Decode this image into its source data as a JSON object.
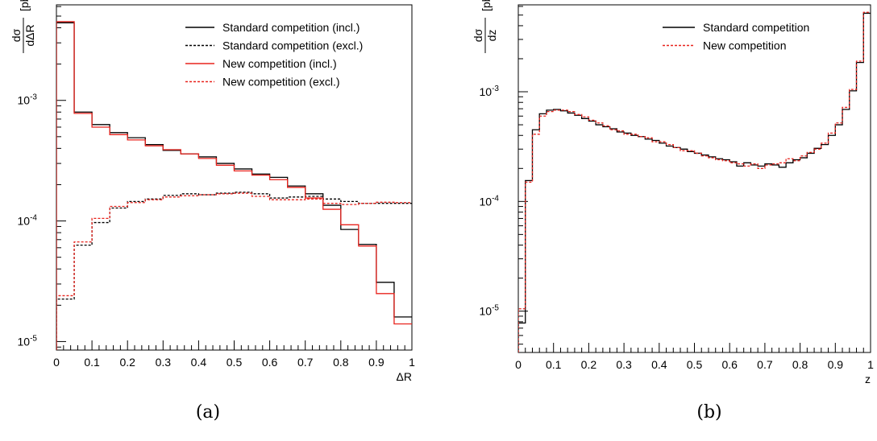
{
  "chart_data": [
    {
      "type": "line",
      "panel": "(a)",
      "xlabel": "ΔR",
      "ylabel": {
        "num": "dσ",
        "den": "dΔR",
        "unit": "[pb]"
      },
      "xlim": [
        0,
        1
      ],
      "ylim": [
        8.5e-06,
        0.0062
      ],
      "yscale": "log",
      "xticks": [
        "0",
        "0.1",
        "0.2",
        "0.3",
        "0.4",
        "0.5",
        "0.6",
        "0.7",
        "0.8",
        "0.9",
        "1"
      ],
      "ytick_labels": [
        {
          "value": 1e-05,
          "base": "10",
          "exp": "-5"
        },
        {
          "value": 0.0001,
          "base": "10",
          "exp": "-4"
        },
        {
          "value": 0.001,
          "base": "10",
          "exp": "-3"
        }
      ],
      "bin_edges": [
        0,
        0.05,
        0.1,
        0.15,
        0.2,
        0.25,
        0.3,
        0.35,
        0.4,
        0.45,
        0.5,
        0.55,
        0.6,
        0.65,
        0.7,
        0.75,
        0.8,
        0.85,
        0.9,
        0.95,
        1.0
      ],
      "legend_position": "top-right",
      "series": [
        {
          "name": "Standard competition (incl.)",
          "color": "#000000",
          "dash": "solid",
          "values": [
            0.0044,
            0.0008,
            0.00063,
            0.00054,
            0.00049,
            0.00043,
            0.000385,
            0.00036,
            0.00034,
            0.0003,
            0.00027,
            0.000245,
            0.00023,
            0.000195,
            0.000168,
            0.000135,
            8.5e-05,
            6.4e-05,
            3.1e-05,
            1.6e-05
          ]
        },
        {
          "name": "Standard competition (excl.)",
          "color": "#000000",
          "dash": "dashed",
          "values": [
            2.25e-05,
            6.3e-05,
            9.7e-05,
            0.000128,
            0.000145,
            0.000152,
            0.000163,
            0.000168,
            0.000165,
            0.00017,
            0.000173,
            0.000168,
            0.000155,
            0.000158,
            0.00016,
            0.000152,
            0.000145,
            0.00014,
            0.00014,
            0.00014
          ]
        },
        {
          "name": "New competition (incl.)",
          "color": "#e8231d",
          "dash": "solid",
          "values": [
            0.0045,
            0.00078,
            0.0006,
            0.00052,
            0.00047,
            0.00042,
            0.00039,
            0.00036,
            0.00033,
            0.00029,
            0.00026,
            0.00024,
            0.00022,
            0.00019,
            0.000155,
            0.000125,
            9.3e-05,
            6.2e-05,
            2.5e-05,
            1.4e-05
          ]
        },
        {
          "name": "New competition (excl.)",
          "color": "#e8231d",
          "dash": "dashed",
          "values": [
            2.4e-05,
            6.7e-05,
            0.000105,
            0.000132,
            0.000142,
            0.00015,
            0.000158,
            0.000162,
            0.000165,
            0.000168,
            0.00017,
            0.00016,
            0.00015,
            0.00015,
            0.000152,
            0.00014,
            0.000137,
            0.00014,
            0.000143,
            0.000142
          ]
        }
      ],
      "caption": "(a)"
    },
    {
      "type": "line",
      "panel": "(b)",
      "xlabel": "z",
      "ylabel": {
        "num": "dσ",
        "den": "dz",
        "unit": "[pb]"
      },
      "xlim": [
        0,
        1
      ],
      "ylim": [
        4.2e-06,
        0.0062
      ],
      "yscale": "log",
      "xticks": [
        "0",
        "0.1",
        "0.2",
        "0.3",
        "0.4",
        "0.5",
        "0.6",
        "0.7",
        "0.8",
        "0.9",
        "1"
      ],
      "ytick_labels": [
        {
          "value": 1e-05,
          "base": "10",
          "exp": "-5"
        },
        {
          "value": 0.0001,
          "base": "10",
          "exp": "-4"
        },
        {
          "value": 0.001,
          "base": "10",
          "exp": "-3"
        }
      ],
      "bin_edges": [
        0,
        0.02,
        0.04,
        0.06,
        0.08,
        0.1,
        0.12,
        0.14,
        0.16,
        0.18,
        0.2,
        0.22,
        0.24,
        0.26,
        0.28,
        0.3,
        0.32,
        0.34,
        0.36,
        0.38,
        0.4,
        0.42,
        0.44,
        0.46,
        0.48,
        0.5,
        0.52,
        0.54,
        0.56,
        0.58,
        0.6,
        0.62,
        0.64,
        0.66,
        0.68,
        0.7,
        0.72,
        0.74,
        0.76,
        0.78,
        0.8,
        0.82,
        0.84,
        0.86,
        0.88,
        0.9,
        0.92,
        0.94,
        0.96,
        0.98,
        1.0
      ],
      "legend_position": "top-right",
      "series": [
        {
          "name": "Standard competition",
          "color": "#000000",
          "dash": "solid",
          "values": [
            7.8e-06,
            0.000155,
            0.00045,
            0.00063,
            0.00068,
            0.00069,
            0.00067,
            0.00064,
            0.00061,
            0.00057,
            0.00054,
            0.0005,
            0.00048,
            0.00046,
            0.00043,
            0.00042,
            0.0004,
            0.00039,
            0.00037,
            0.00036,
            0.00034,
            0.00032,
            0.00031,
            0.0003,
            0.000285,
            0.000275,
            0.000265,
            0.000255,
            0.000245,
            0.00024,
            0.00023,
            0.00021,
            0.000225,
            0.000215,
            0.00021,
            0.00022,
            0.000215,
            0.000205,
            0.000225,
            0.00024,
            0.00025,
            0.000275,
            0.000305,
            0.00033,
            0.0004,
            0.0005,
            0.00069,
            0.00102,
            0.00185,
            0.0052
          ]
        },
        {
          "name": "New competition",
          "color": "#e8231d",
          "dash": "dashed",
          "values": [
            1.05e-05,
            0.00015,
            0.00041,
            0.0006,
            0.00066,
            0.00068,
            0.00068,
            0.00066,
            0.00062,
            0.00059,
            0.00055,
            0.00052,
            0.00049,
            0.00045,
            0.00044,
            0.00041,
            0.00041,
            0.00039,
            0.00038,
            0.00035,
            0.00035,
            0.00033,
            0.00031,
            0.00029,
            0.00029,
            0.000275,
            0.00026,
            0.00025,
            0.00024,
            0.000235,
            0.000225,
            0.00022,
            0.00021,
            0.00022,
            0.0002,
            0.000215,
            0.00022,
            0.000225,
            0.000245,
            0.000235,
            0.00026,
            0.00028,
            0.0003,
            0.00034,
            0.00042,
            0.00052,
            0.00072,
            0.00105,
            0.0019,
            0.0053
          ]
        }
      ],
      "caption": "(b)"
    }
  ]
}
